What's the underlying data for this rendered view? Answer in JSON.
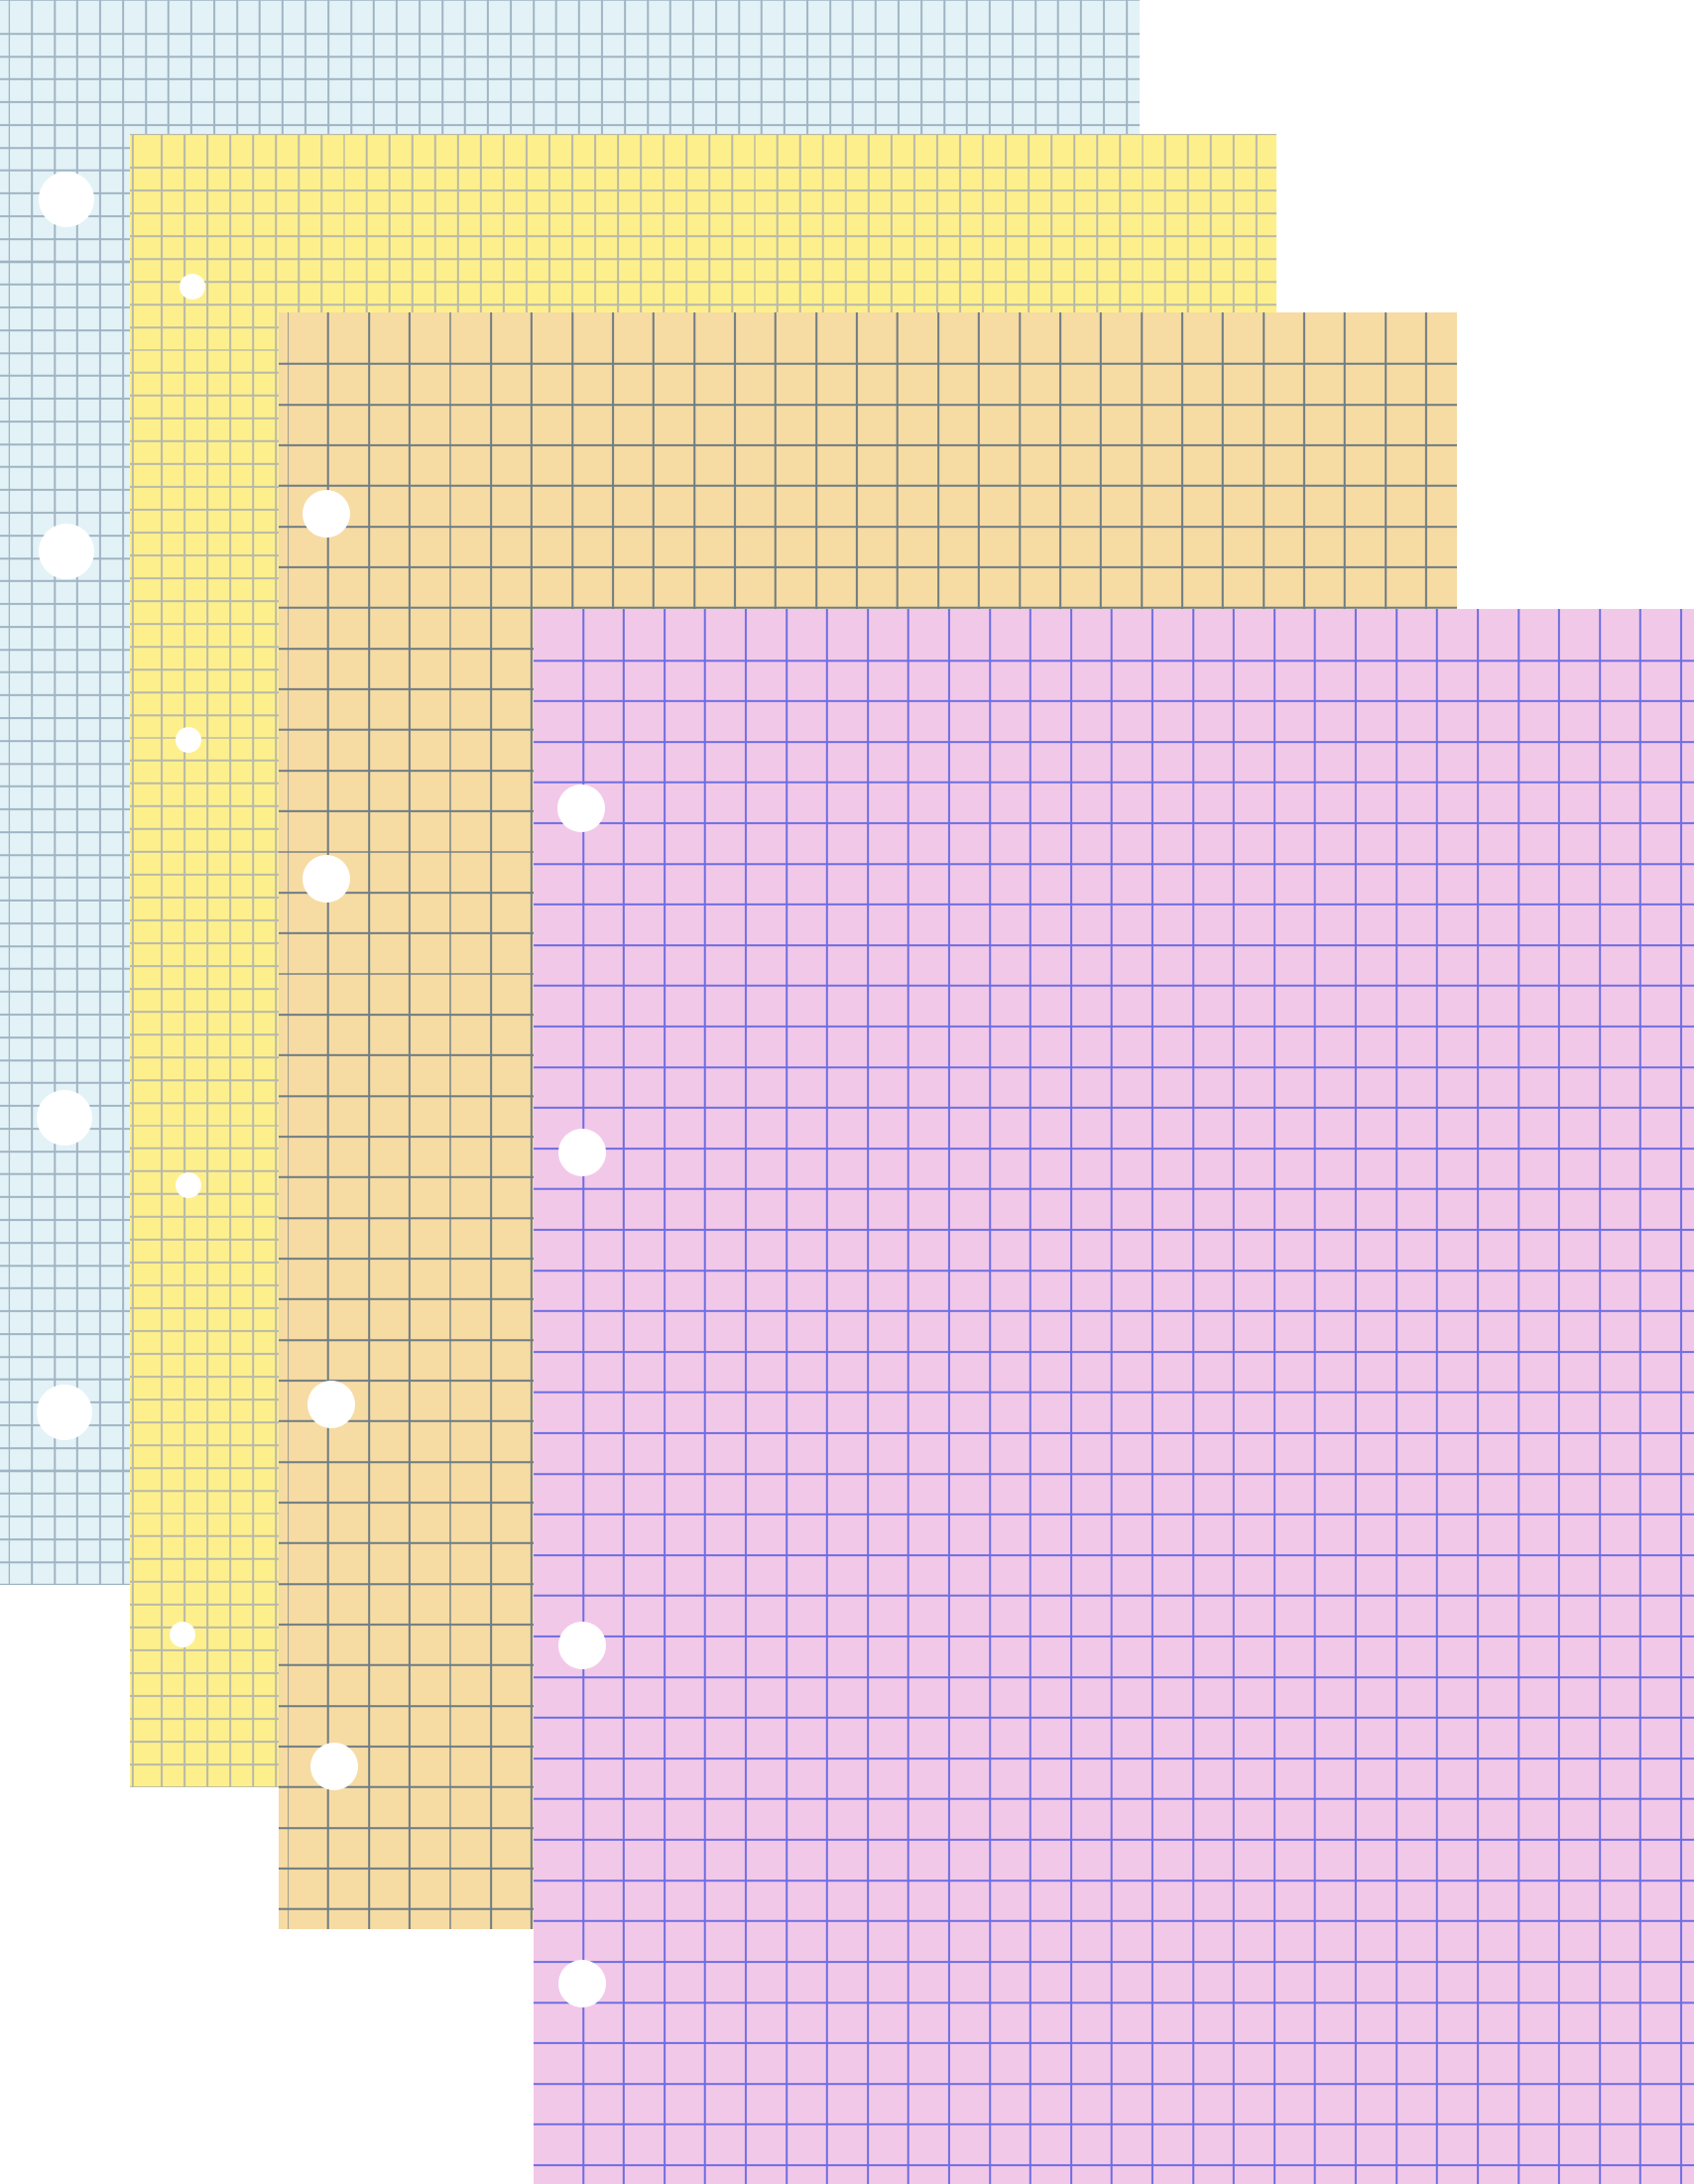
{
  "sheets": [
    {
      "id": "blue",
      "paper_color": "#e3f2f6",
      "grid_color": "#9fb4c4",
      "grid_cell": 23,
      "hole_r": 28
    },
    {
      "id": "yellow",
      "paper_color": "#fdf08c",
      "grid_color": "#b9b9a8",
      "grid_cell": 23,
      "hole_r": 13
    },
    {
      "id": "orange",
      "paper_color": "#f6dba3",
      "grid_color": "#6f7d84",
      "grid_cell": 41,
      "hole_r": 24
    },
    {
      "id": "pink",
      "paper_color": "#f2c8e8",
      "grid_color": "#6d6de2",
      "grid_cell": 41,
      "hole_r": 24
    }
  ],
  "background": "#ffffff"
}
